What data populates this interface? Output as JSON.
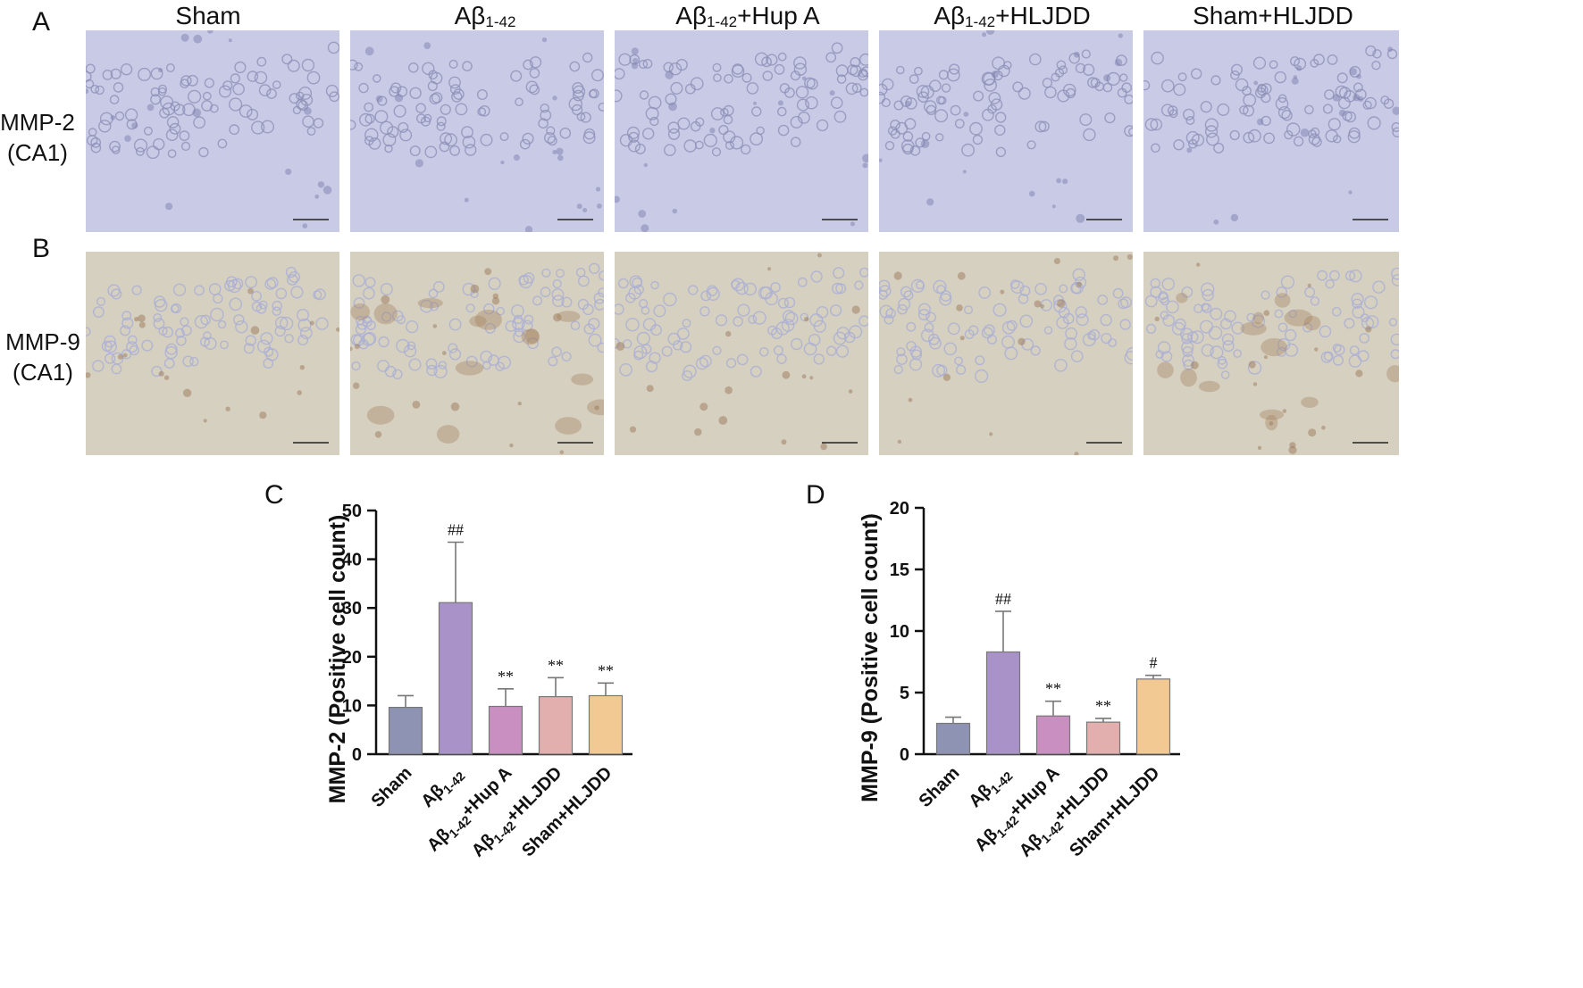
{
  "panels": {
    "A": "A",
    "B": "B",
    "C": "C",
    "D": "D"
  },
  "micrographs": {
    "columns": [
      {
        "main": "Sham",
        "sub": "",
        "rest": ""
      },
      {
        "main": "Aβ",
        "sub": "1-42",
        "rest": ""
      },
      {
        "main": "Aβ",
        "sub": "1-42",
        "rest": "+Hup A"
      },
      {
        "main": "Aβ",
        "sub": "1-42",
        "rest": "+HLJDD"
      },
      {
        "main": "Sham+HLJDD",
        "sub": "",
        "rest": ""
      }
    ],
    "rows": [
      {
        "line1": "MMP-2",
        "line2": "(CA1)",
        "stain": "blue"
      },
      {
        "line1": "MMP-9",
        "line2": "(CA1)",
        "stain": "brown"
      }
    ],
    "colors": {
      "blue_bg": "#c9cbe6",
      "blue_cell": "#8f90b8",
      "brown_bg": "#d6d0c0",
      "brown_cell": "#a9aed6"
    }
  },
  "chart_data": [
    {
      "panel": "C",
      "type": "bar",
      "ylabel": "MMP-2  (Positive cell count)",
      "ylim": [
        0,
        50
      ],
      "yticks": [
        0,
        10,
        20,
        30,
        40,
        50
      ],
      "categories": [
        {
          "main": "Sham",
          "sub": "",
          "rest": ""
        },
        {
          "main": "Aβ",
          "sub": "1-42",
          "rest": ""
        },
        {
          "main": "Aβ",
          "sub": "1-42",
          "rest": "+Hup A"
        },
        {
          "main": "Aβ",
          "sub": "1-42",
          "rest": "+HLJDD"
        },
        {
          "main": "Sham+HLJDD",
          "sub": "",
          "rest": ""
        }
      ],
      "values": [
        9.6,
        31.1,
        9.8,
        11.8,
        12.0
      ],
      "errors": [
        2.4,
        12.4,
        3.6,
        3.9,
        2.6
      ],
      "annotations": [
        "",
        "##",
        "**",
        "**",
        "**"
      ],
      "colors": [
        "#8e93b4",
        "#a892c8",
        "#c88fc0",
        "#e2afae",
        "#f2c993"
      ]
    },
    {
      "panel": "D",
      "type": "bar",
      "ylabel": "MMP-9 (Positive cell count)",
      "ylim": [
        0,
        20
      ],
      "yticks": [
        0,
        5,
        10,
        15,
        20
      ],
      "categories": [
        {
          "main": "Sham",
          "sub": "",
          "rest": ""
        },
        {
          "main": "Aβ",
          "sub": "1-42",
          "rest": ""
        },
        {
          "main": "Aβ",
          "sub": "1-42",
          "rest": "+Hup A"
        },
        {
          "main": "Aβ",
          "sub": "1-42",
          "rest": "+HLJDD"
        },
        {
          "main": "Sham+HLJDD",
          "sub": "",
          "rest": ""
        }
      ],
      "values": [
        2.5,
        8.3,
        3.1,
        2.6,
        6.1
      ],
      "errors": [
        0.5,
        3.3,
        1.2,
        0.3,
        0.3
      ],
      "annotations": [
        "",
        "##",
        "**",
        "**",
        "#"
      ],
      "colors": [
        "#8e93b4",
        "#a892c8",
        "#c88fc0",
        "#e2afae",
        "#f2c993"
      ]
    }
  ]
}
